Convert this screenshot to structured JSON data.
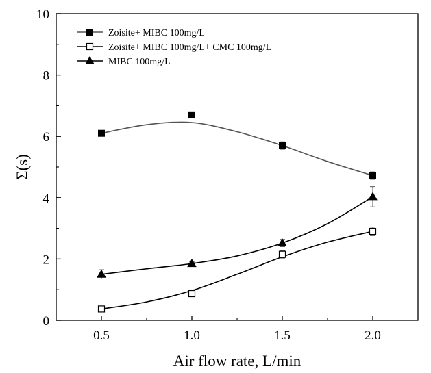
{
  "chart_data": {
    "type": "line",
    "xlabel": "Air flow rate, L/min",
    "ylabel": "Σ(s)",
    "xlim": [
      0.25,
      2.25
    ],
    "ylim": [
      0,
      10
    ],
    "x_ticks": [
      "0.5",
      "1.0",
      "1.5",
      "2.0"
    ],
    "y_ticks": [
      "0",
      "2",
      "4",
      "6",
      "8",
      "10"
    ],
    "x_tick_values": [
      0.5,
      1.0,
      1.5,
      2.0
    ],
    "y_tick_values": [
      0,
      2,
      4,
      6,
      8,
      10
    ],
    "grid": false,
    "legend_position": "top-left",
    "series": [
      {
        "name": "Zoisite+ MIBC 100mg/L",
        "marker": "filled-square",
        "color": "#000000",
        "line_color": "#555555",
        "x": [
          0.5,
          1.0,
          1.5,
          2.0
        ],
        "values": [
          6.1,
          6.7,
          5.7,
          4.72
        ],
        "errors": [
          0.05,
          0.05,
          0.12,
          0.12
        ],
        "fit": [
          6.1,
          6.38,
          6.45,
          6.15,
          5.7,
          5.18,
          4.72
        ]
      },
      {
        "name": "Zoisite+ MIBC 100mg/L+ CMC 100mg/L",
        "marker": "open-square",
        "color": "#000000",
        "line_color": "#000000",
        "x": [
          0.5,
          1.0,
          1.5,
          2.0
        ],
        "values": [
          0.37,
          0.87,
          2.15,
          2.9
        ],
        "errors": [
          0.05,
          0.1,
          0.12,
          0.14
        ],
        "fit": [
          0.37,
          0.6,
          0.97,
          1.5,
          2.07,
          2.55,
          2.9
        ]
      },
      {
        "name": "MIBC 100mg/L",
        "marker": "filled-triangle",
        "color": "#000000",
        "line_color": "#000000",
        "x": [
          0.5,
          1.0,
          1.5,
          2.0
        ],
        "values": [
          1.5,
          1.85,
          2.52,
          4.03
        ],
        "errors": [
          0.15,
          0.05,
          0.12,
          0.33
        ],
        "fit": [
          1.5,
          1.68,
          1.85,
          2.1,
          2.52,
          3.15,
          4.03
        ]
      }
    ],
    "fit_x": [
      0.5,
      0.75,
      1.0,
      1.25,
      1.5,
      1.75,
      2.0
    ]
  }
}
